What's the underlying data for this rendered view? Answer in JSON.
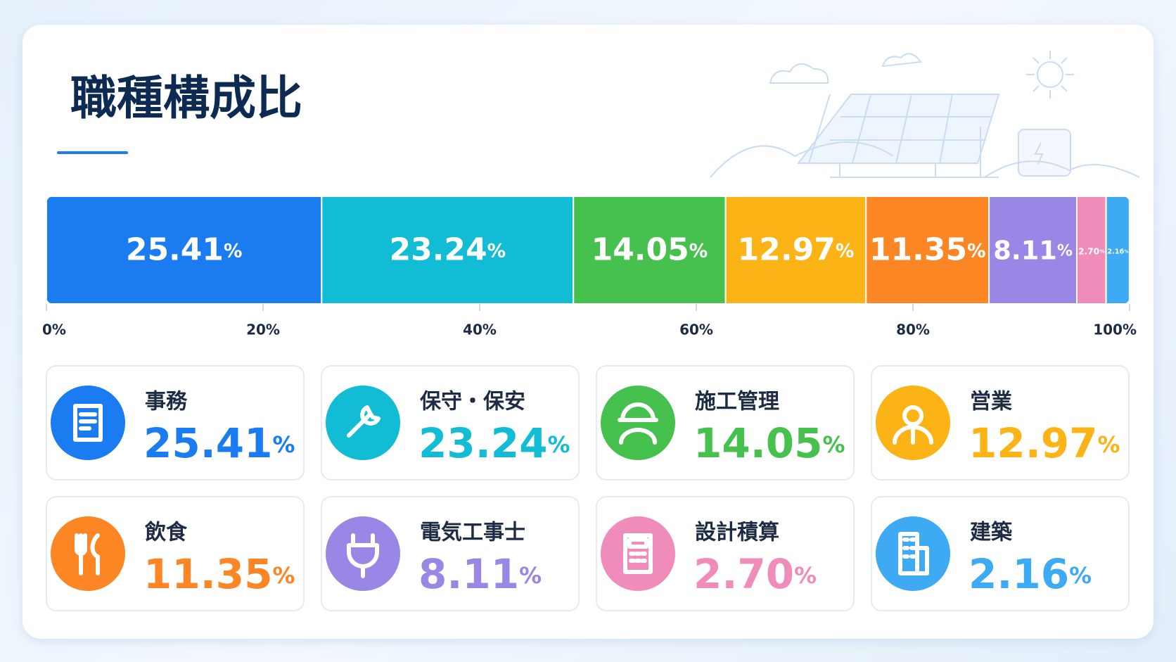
{
  "chart_data": {
    "type": "stacked_bar",
    "title": "職種構成比",
    "categories": [
      "事務",
      "保守・保安",
      "施工管理",
      "営業",
      "飲食",
      "電気工事士",
      "設計積算",
      "建築"
    ],
    "values": [
      25.41,
      23.24,
      14.05,
      12.97,
      11.35,
      8.11,
      2.7,
      2.16
    ],
    "value_labels": [
      "25.41%",
      "23.24%",
      "14.05%",
      "12.97%",
      "11.35%",
      "8.11%",
      "2.70%",
      "2.16%"
    ],
    "colors": [
      "#1a7cf0",
      "#12bcd4",
      "#46c14e",
      "#fbb315",
      "#fb8623",
      "#9a86e4",
      "#f08cba",
      "#3daaf3"
    ],
    "xlim": [
      0,
      100
    ],
    "xticks": [
      {
        "value": 0,
        "label": "0%"
      },
      {
        "value": 20,
        "label": "20%"
      },
      {
        "value": 40,
        "label": "40%"
      },
      {
        "value": 60,
        "label": "60%"
      },
      {
        "value": 80,
        "label": "80%"
      },
      {
        "value": 100,
        "label": "100%"
      }
    ]
  }
}
